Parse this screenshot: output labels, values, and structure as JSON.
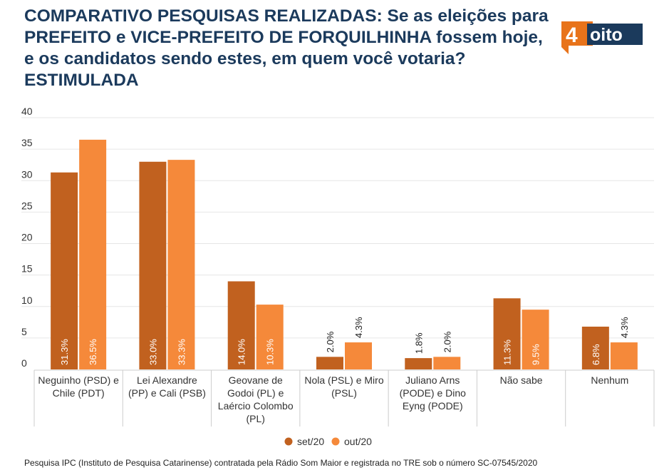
{
  "title": "COMPARATIVO PESQUISAS REALIZADAS: Se as eleições para PREFEITO e VICE-PREFEITO DE FORQUILHINHA fossem hoje, e os candidatos sendo estes, em quem você votaria? ESTIMULADA",
  "logo": {
    "number": "4",
    "word": "oito",
    "colors": {
      "orange": "#e8731a",
      "navy": "#1b3a5c"
    }
  },
  "source": "Pesquisa IPC (Instituto de Pesquisa Catarinense) contratada pela Rádio Som Maior e registrada no TRE sob o número SC-07545/2020",
  "chart_data": {
    "type": "bar",
    "categories": [
      [
        "Neguinho (PSD) e",
        "Chile (PDT)"
      ],
      [
        "Lei Alexandre",
        "(PP) e Cali (PSB)"
      ],
      [
        "Geovane de",
        "Godoi (PL) e",
        "Laércio Colombo",
        "(PL)"
      ],
      [
        "Nola (PSL) e Miro",
        "(PSL)"
      ],
      [
        "Juliano Arns",
        "(PODE) e Dino",
        "Eyng (PODE)"
      ],
      [
        "Não sabe"
      ],
      [
        "Nenhum"
      ]
    ],
    "series": [
      {
        "name": "set/20",
        "color": "#c1611f",
        "values": [
          31.3,
          33.0,
          14.0,
          2.0,
          1.8,
          11.3,
          6.8
        ],
        "labels": [
          "31.3%",
          "33.0%",
          "14.0%",
          "2.0%",
          "1.8%",
          "11.3%",
          "6.8%"
        ]
      },
      {
        "name": "out/20",
        "color": "#f5893a",
        "values": [
          36.5,
          33.3,
          10.3,
          4.3,
          2.0,
          9.5,
          4.3
        ],
        "labels": [
          "36.5%",
          "33.3%",
          "10.3%",
          "4.3%",
          "2.0%",
          "9.5%",
          "4.3%"
        ]
      }
    ],
    "yticks": [
      0,
      5,
      10,
      15,
      20,
      25,
      30,
      35,
      40
    ],
    "ylim": [
      0,
      40
    ],
    "grid": true,
    "legend": "bottom-center"
  }
}
